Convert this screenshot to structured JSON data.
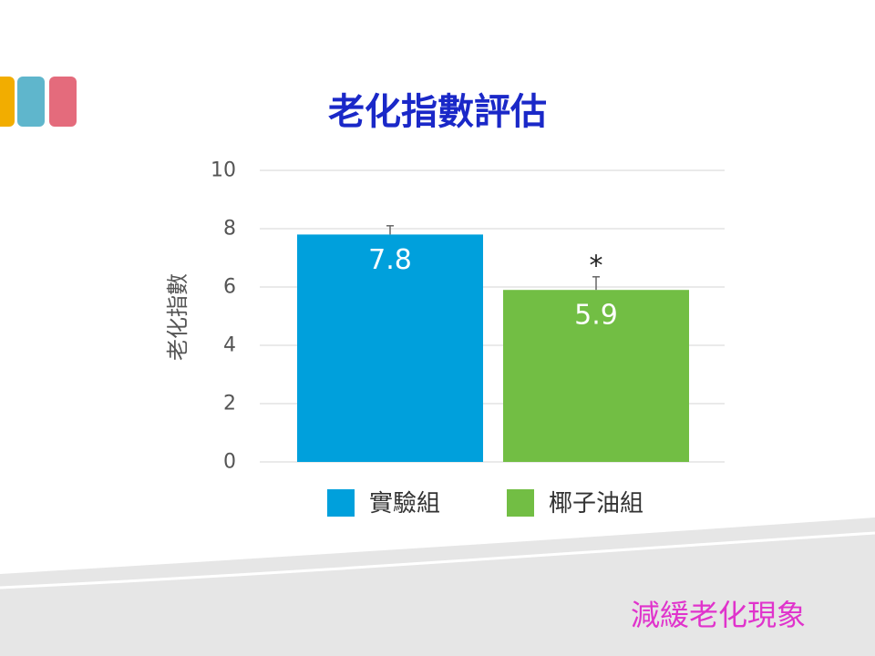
{
  "slide": {
    "title": "老化指數評估",
    "caption": "減緩老化現象"
  },
  "colors": {
    "title": "#1a28c8",
    "caption": "#e033cc",
    "deco": [
      "#f2ad00",
      "#5fb6cc",
      "#e46b7c"
    ]
  },
  "chart_data": {
    "type": "bar",
    "categories": [
      "實驗組",
      "椰子油組"
    ],
    "values": [
      7.8,
      5.9
    ],
    "error_upper": [
      8.1,
      6.35
    ],
    "data_labels": [
      "7.8",
      "5.9"
    ],
    "significance": [
      "",
      "*"
    ],
    "colors": [
      "#00a0dc",
      "#72be44"
    ],
    "ylabel": "老化指數",
    "ylim": [
      0,
      10
    ],
    "yticks": [
      0,
      2,
      4,
      6,
      8,
      10
    ],
    "grid": true,
    "legend": {
      "position": "bottom",
      "entries": [
        "實驗組",
        "椰子油組"
      ]
    }
  }
}
